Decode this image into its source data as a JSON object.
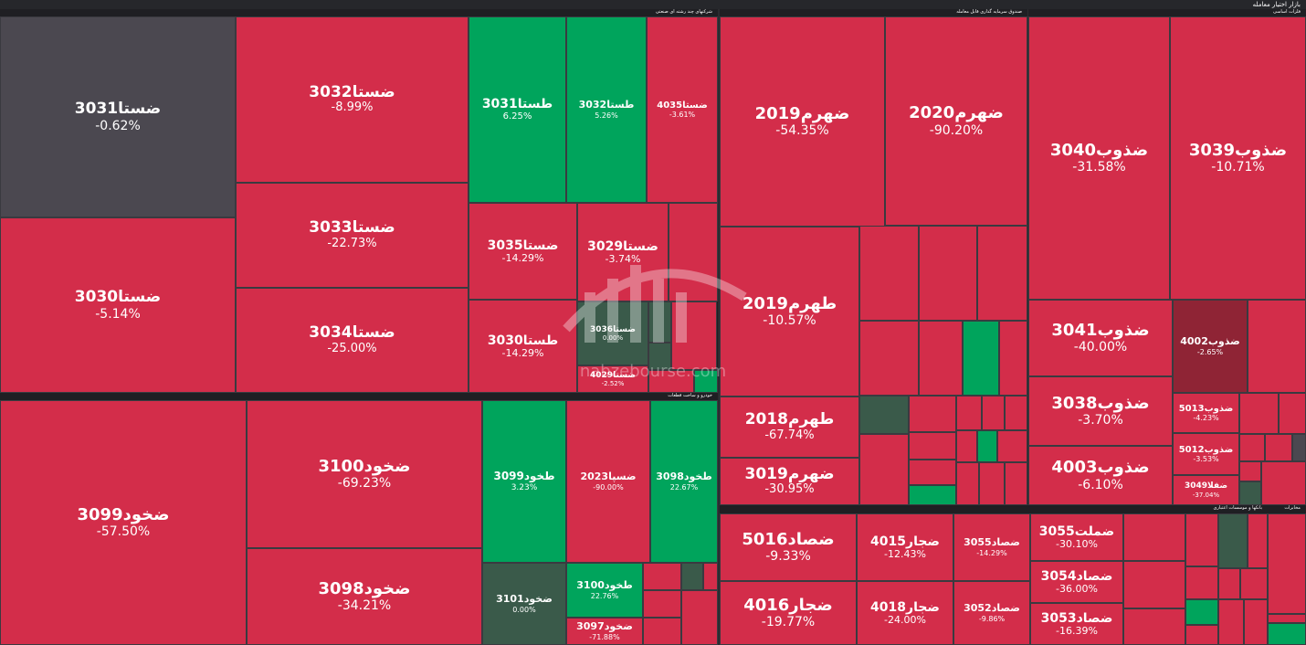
{
  "header": {
    "title": "بازار اختیار معامله"
  },
  "colors": {
    "red": "#d32d4a",
    "green": "#00a45c",
    "dark_green": "#3a5a4a",
    "gray": "#4b4850",
    "dark_red": "#8f2435"
  },
  "sections": [
    {
      "name": "شرکتهای چند رشته ای صنعتی"
    },
    {
      "name": "خودرو و ساخت قطعات"
    },
    {
      "name": "صندوق سرمایه گذاری قابل معامله"
    },
    {
      "name": "فلزات اساسی"
    },
    {
      "name": "بانکها و موسسات اعتباری"
    },
    {
      "name": "مخابرات"
    }
  ],
  "tiles": [
    {
      "symbol": "ضستا3031",
      "change": "-0.62%",
      "color": "gray"
    },
    {
      "symbol": "ضستا3032",
      "change": "-8.99%",
      "color": "red"
    },
    {
      "symbol": "طستا3031",
      "change": "6.25%",
      "color": "green"
    },
    {
      "symbol": "طستا3032",
      "change": "5.26%",
      "color": "green"
    },
    {
      "symbol": "ضستا4035",
      "change": "-3.61%",
      "color": "red"
    },
    {
      "symbol": "ضستا3033",
      "change": "-22.73%",
      "color": "red"
    },
    {
      "symbol": "ضستا3035",
      "change": "-14.29%",
      "color": "red"
    },
    {
      "symbol": "ضستا3029",
      "change": "-3.74%",
      "color": "red"
    },
    {
      "symbol": "ضستا3030",
      "change": "-5.14%",
      "color": "red"
    },
    {
      "symbol": "ضستا3034",
      "change": "-25.00%",
      "color": "red"
    },
    {
      "symbol": "طستا3030",
      "change": "-14.29%",
      "color": "red"
    },
    {
      "symbol": "ضستا3036",
      "change": "0.00%",
      "color": "dark_green"
    },
    {
      "symbol": "ضستا4029",
      "change": "-2.52%",
      "color": "red"
    },
    {
      "symbol": "ضخود3099",
      "change": "-57.50%",
      "color": "red"
    },
    {
      "symbol": "ضخود3100",
      "change": "-69.23%",
      "color": "red"
    },
    {
      "symbol": "طخود3099",
      "change": "3.23%",
      "color": "green"
    },
    {
      "symbol": "ضسپا2023",
      "change": "-90.00%",
      "color": "red"
    },
    {
      "symbol": "طخود3098",
      "change": "22.67%",
      "color": "green"
    },
    {
      "symbol": "ضخود3098",
      "change": "-34.21%",
      "color": "red"
    },
    {
      "symbol": "ضخود3101",
      "change": "0.00%",
      "color": "dark_green"
    },
    {
      "symbol": "طخود3100",
      "change": "22.76%",
      "color": "green"
    },
    {
      "symbol": "ضخود3097",
      "change": "-71.88%",
      "color": "red"
    },
    {
      "symbol": "ضهرم2019",
      "change": "-54.35%",
      "color": "red"
    },
    {
      "symbol": "ضهرم2020",
      "change": "-90.20%",
      "color": "red"
    },
    {
      "symbol": "طهرم2019",
      "change": "-10.57%",
      "color": "red"
    },
    {
      "symbol": "طهرم2018",
      "change": "-67.74%",
      "color": "red"
    },
    {
      "symbol": "ضهرم3019",
      "change": "-30.95%",
      "color": "red"
    },
    {
      "symbol": "ضذوب3040",
      "change": "-31.58%",
      "color": "red"
    },
    {
      "symbol": "ضذوب3039",
      "change": "-10.71%",
      "color": "red"
    },
    {
      "symbol": "ضذوب3041",
      "change": "-40.00%",
      "color": "red"
    },
    {
      "symbol": "ضذوب4002",
      "change": "-2.65%",
      "color": "dark_red"
    },
    {
      "symbol": "ضذوب3038",
      "change": "-3.70%",
      "color": "red"
    },
    {
      "symbol": "ضذوب4003",
      "change": "-6.10%",
      "color": "red"
    },
    {
      "symbol": "ضذوب5013",
      "change": "-4.23%",
      "color": "red"
    },
    {
      "symbol": "ضذوب5012",
      "change": "-3.53%",
      "color": "red"
    },
    {
      "symbol": "ضفلا3049",
      "change": "-37.04%",
      "color": "red"
    },
    {
      "symbol": "ضصاد5016",
      "change": "-9.33%",
      "color": "red"
    },
    {
      "symbol": "ضجار4015",
      "change": "-12.43%",
      "color": "red"
    },
    {
      "symbol": "ضصاد3055",
      "change": "-14.29%",
      "color": "red"
    },
    {
      "symbol": "ضملت3055",
      "change": "-30.10%",
      "color": "red"
    },
    {
      "symbol": "ضجار4016",
      "change": "-19.77%",
      "color": "red"
    },
    {
      "symbol": "ضجار4018",
      "change": "-24.00%",
      "color": "red"
    },
    {
      "symbol": "ضصاد3052",
      "change": "-9.86%",
      "color": "red"
    },
    {
      "symbol": "ضصاد3054",
      "change": "-36.00%",
      "color": "red"
    },
    {
      "symbol": "ضصاد3053",
      "change": "-16.39%",
      "color": "red"
    }
  ],
  "watermark": {
    "text": "nabzebourse.com"
  }
}
